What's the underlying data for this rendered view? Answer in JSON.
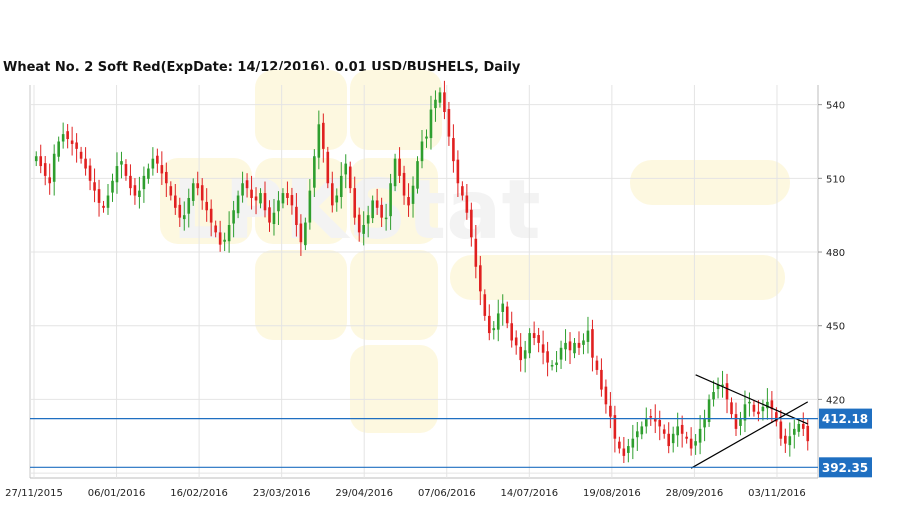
{
  "chart_data": {
    "type": "candlestick",
    "title": "Wheat  No. 2 Soft Red(ExpDate: 14/12/2016), 0.01 USD/BUSHELS, Daily",
    "ylim": [
      388,
      548
    ],
    "y_ticks": [
      540,
      510,
      480,
      450,
      420
    ],
    "x_tick_labels": [
      "27/11/2015",
      "06/01/2016",
      "16/02/2016",
      "23/03/2016",
      "29/04/2016",
      "07/06/2016",
      "14/07/2016",
      "19/08/2016",
      "28/09/2016",
      "03/11/2016"
    ],
    "grid": true,
    "colors": {
      "up": "#2e9e2e",
      "down": "#e02020",
      "levels": "#1f6fc1",
      "trend": "#000000"
    },
    "closes": [
      519,
      515,
      511,
      508,
      520,
      525,
      528,
      526,
      524,
      522,
      518,
      514,
      509,
      505,
      500,
      498,
      503,
      509,
      515,
      517,
      511,
      506,
      503,
      505,
      511,
      514,
      518,
      516,
      512,
      508,
      503,
      498,
      494,
      495,
      502,
      508,
      506,
      501,
      497,
      492,
      488,
      483,
      485,
      491,
      497,
      503,
      508,
      506,
      502,
      501,
      504,
      497,
      492,
      496,
      501,
      504,
      502,
      499,
      491,
      484,
      492,
      505,
      519,
      532,
      522,
      508,
      499,
      503,
      511,
      516,
      506,
      494,
      488,
      491,
      495,
      501,
      498,
      494,
      494,
      508,
      518,
      511,
      503,
      499,
      507,
      517,
      525,
      527,
      538,
      542,
      545,
      537,
      527,
      517,
      508,
      503,
      496,
      486,
      474,
      464,
      454,
      447,
      449,
      455,
      459,
      451,
      444,
      442,
      436,
      440,
      447,
      445,
      443,
      439,
      435,
      434,
      435,
      441,
      443,
      440,
      443,
      441,
      444,
      448,
      437,
      432,
      424,
      418,
      413,
      404,
      400,
      397,
      401,
      404,
      407,
      409,
      412,
      413,
      411,
      409,
      406,
      401,
      406,
      409,
      406,
      404,
      400,
      403,
      408,
      412,
      420,
      423,
      426,
      426,
      420,
      414,
      408,
      412,
      418,
      419,
      415,
      414,
      417,
      419,
      416,
      411,
      404,
      402,
      405,
      408,
      410,
      408,
      403
    ],
    "levels": [
      {
        "label": "412.18",
        "value": 412.18
      },
      {
        "label": "392.35",
        "value": 392.35
      }
    ],
    "trendlines": [
      {
        "from": [
          146,
          392
        ],
        "to": [
          172,
          419
        ]
      },
      {
        "from": [
          147,
          430
        ],
        "to": [
          172,
          410
        ]
      }
    ]
  },
  "watermark": {
    "text": "LPKStat"
  }
}
